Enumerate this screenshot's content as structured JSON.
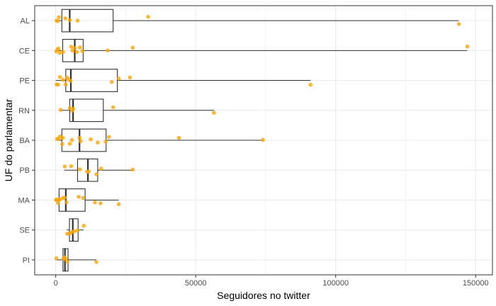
{
  "chart_data": {
    "type": "boxplot",
    "orientation": "horizontal",
    "xlabel": "Seguidores no twitter",
    "ylabel": "UF do parlamentar",
    "xlim": [
      -7500,
      156000
    ],
    "x_ticks": [
      0,
      50000,
      100000,
      150000
    ],
    "x_tick_labels": [
      "0",
      "50000",
      "100000",
      "150000"
    ],
    "grid": true,
    "categories": [
      "AL",
      "CE",
      "PE",
      "RN",
      "BA",
      "PB",
      "MA",
      "SE",
      "PI"
    ],
    "colors": {
      "points": "#FFA500",
      "box": "#333333",
      "grid": "#ebebeb",
      "panel_border": "#333333"
    },
    "series": [
      {
        "category": "AL",
        "box": {
          "min": 0,
          "q1": 2200,
          "median": 5000,
          "q3": 20500,
          "max": 144000
        },
        "points": [
          300,
          700,
          1100,
          3400,
          5000,
          7800,
          33000,
          144000
        ]
      },
      {
        "category": "CE",
        "box": {
          "min": 0,
          "q1": 2500,
          "median": 6800,
          "q3": 9800,
          "max": 147000
        },
        "points": [
          200,
          600,
          900,
          1400,
          2600,
          5500,
          6000,
          6800,
          7500,
          8600,
          9500,
          18500,
          27500,
          147000
        ]
      },
      {
        "category": "PE",
        "box": {
          "min": 0,
          "q1": 3600,
          "median": 5400,
          "q3": 22000,
          "max": 91000
        },
        "points": [
          300,
          800,
          1500,
          2600,
          3500,
          4100,
          4600,
          5300,
          20000,
          22500,
          26500,
          91000
        ]
      },
      {
        "category": "RN",
        "box": {
          "min": 1700,
          "q1": 5000,
          "median": 6200,
          "q3": 17000,
          "max": 56500
        },
        "points": [
          1700,
          5000,
          5800,
          6200,
          20500,
          56500
        ]
      },
      {
        "category": "BA",
        "box": {
          "min": 0,
          "q1": 2200,
          "median": 8500,
          "q3": 18000,
          "max": 74000
        },
        "points": [
          500,
          900,
          1500,
          2300,
          2500,
          5000,
          5800,
          8500,
          8900,
          12500,
          15000,
          17800,
          19000,
          44000,
          74000
        ]
      },
      {
        "category": "PB",
        "box": {
          "min": 3000,
          "q1": 7800,
          "median": 11500,
          "q3": 15000,
          "max": 27500
        },
        "points": [
          3200,
          5500,
          8600,
          11200,
          11700,
          14500,
          16200,
          27500
        ]
      },
      {
        "category": "MA",
        "box": {
          "min": 0,
          "q1": 1200,
          "median": 3600,
          "q3": 10500,
          "max": 22500
        },
        "points": [
          100,
          300,
          800,
          1100,
          1500,
          2600,
          3200,
          3800,
          8200,
          9800,
          14000,
          16000,
          22500
        ]
      },
      {
        "category": "SE",
        "box": {
          "min": 4000,
          "q1": 4900,
          "median": 6100,
          "q3": 8000,
          "max": 10000
        },
        "points": [
          4100,
          5100,
          5800,
          6600,
          7800,
          10000
        ]
      },
      {
        "category": "PI",
        "box": {
          "min": 0,
          "q1": 2600,
          "median": 3300,
          "q3": 4400,
          "max": 14500
        },
        "points": [
          200,
          2700,
          3100,
          3500,
          4100,
          14500
        ]
      }
    ]
  }
}
